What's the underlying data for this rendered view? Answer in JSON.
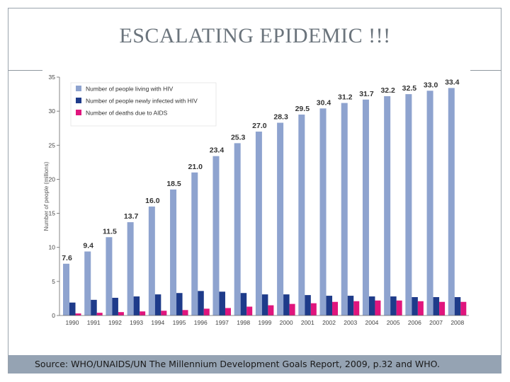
{
  "slide": {
    "title": "ESCALATING EPIDEMIC !!!",
    "source": "Source: WHO/UNAIDS/UN The Millennium Development Goals Report, 2009, p.32 and WHO."
  },
  "colors": {
    "living": "#8ea3cf",
    "new_infections": "#1e3b8a",
    "deaths": "#e0157d"
  },
  "chart_data": {
    "type": "bar",
    "title": "",
    "xlabel": "",
    "ylabel": "Number of people (millions)",
    "ylim": [
      0,
      35
    ],
    "yticks": [
      0,
      5,
      10,
      15,
      20,
      25,
      30,
      35
    ],
    "grid": false,
    "legend_position": "top-left",
    "categories": [
      "1990",
      "1991",
      "1992",
      "1993",
      "1994",
      "1995",
      "1996",
      "1997",
      "1998",
      "1999",
      "2000",
      "2001",
      "2002",
      "2003",
      "2004",
      "2005",
      "2006",
      "2007",
      "2008"
    ],
    "series": [
      {
        "name": "Number of people living with HIV",
        "color_key": "living",
        "values": [
          7.6,
          9.4,
          11.5,
          13.7,
          16.0,
          18.5,
          21.0,
          23.4,
          25.3,
          27.0,
          28.3,
          29.5,
          30.4,
          31.2,
          31.7,
          32.2,
          32.5,
          33.0,
          33.4
        ],
        "labels": [
          "7.6",
          "9.4",
          "11.5",
          "13.7",
          "16.0",
          "18.5",
          "21.0",
          "23.4",
          "25.3",
          "27.0",
          "28.3",
          "29.5",
          "30.4",
          "31.2",
          "31.7",
          "32.2",
          "32.5",
          "33.0",
          "33.4"
        ]
      },
      {
        "name": "Number of people newly infected with HIV",
        "color_key": "new_infections",
        "values": [
          1.9,
          2.3,
          2.6,
          2.8,
          3.1,
          3.3,
          3.6,
          3.5,
          3.3,
          3.1,
          3.1,
          3.0,
          2.9,
          2.9,
          2.8,
          2.8,
          2.7,
          2.7,
          2.7
        ]
      },
      {
        "name": "Number of deaths due to AIDS",
        "color_key": "deaths",
        "values": [
          0.3,
          0.4,
          0.5,
          0.6,
          0.7,
          0.8,
          1.0,
          1.1,
          1.3,
          1.5,
          1.7,
          1.8,
          2.0,
          2.1,
          2.2,
          2.2,
          2.1,
          2.0,
          2.0
        ]
      }
    ]
  }
}
